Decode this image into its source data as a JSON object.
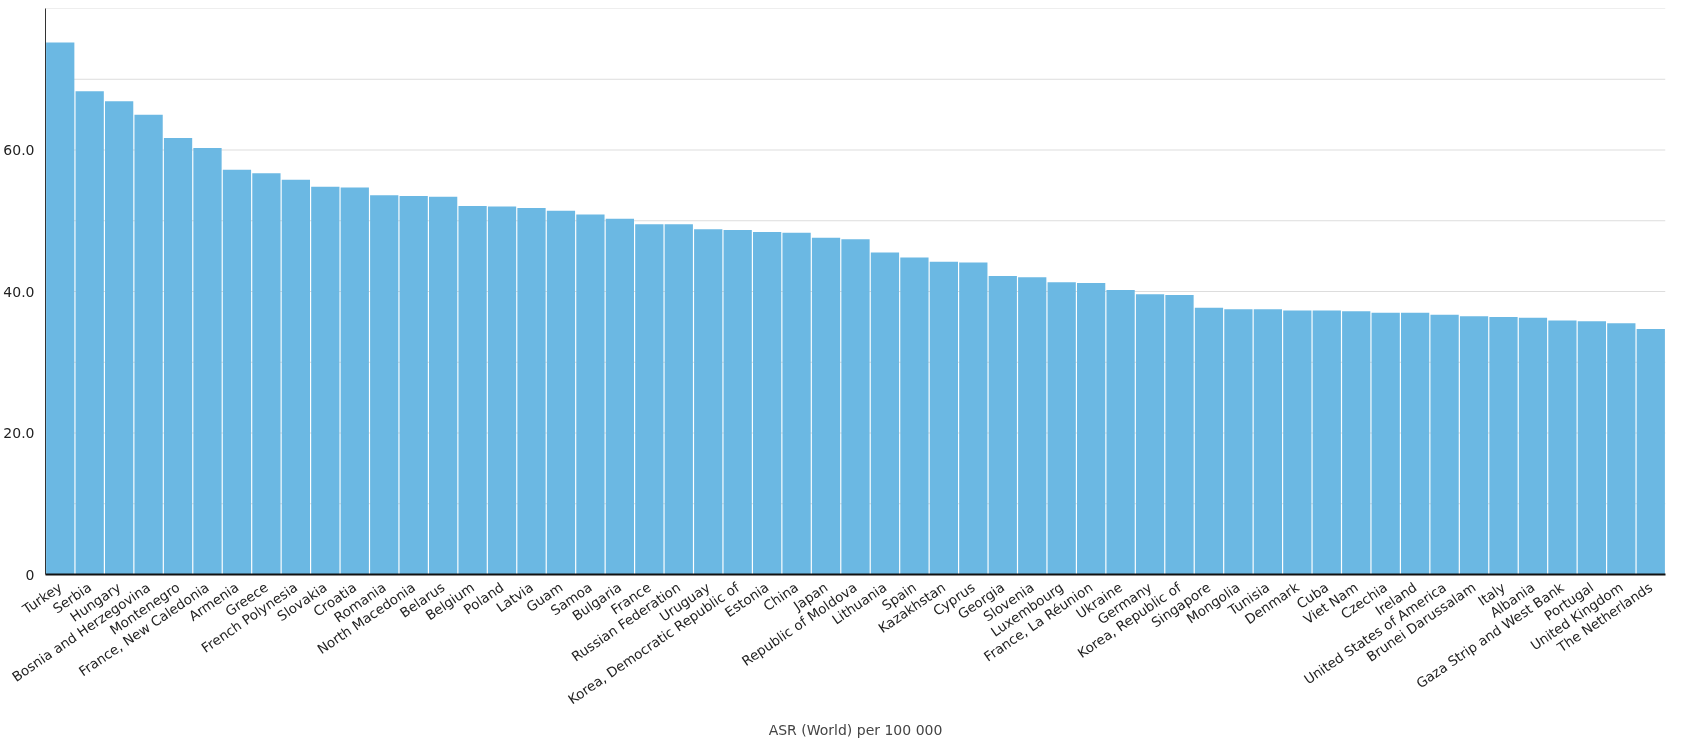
{
  "chart_data": {
    "type": "bar",
    "xlabel": "ASR (World) per 100 000",
    "color": "#6bb8e3",
    "grid": "y",
    "categories": [
      "Turkey",
      "Serbia",
      "Hungary",
      "Bosnia and Herzegovina",
      "Montenegro",
      "France, New Caledonia",
      "Armenia",
      "Greece",
      "French Polynesia",
      "Slovakia",
      "Croatia",
      "Romania",
      "North Macedonia",
      "Belarus",
      "Belgium",
      "Poland",
      "Latvia",
      "Guam",
      "Samoa",
      "Bulgaria",
      "France",
      "Russian Federation",
      "Uruguay",
      "Korea, Democratic Republic of",
      "Estonia",
      "China",
      "Japan",
      "Republic of Moldova",
      "Lithuania",
      "Spain",
      "Kazakhstan",
      "Cyprus",
      "Georgia",
      "Slovenia",
      "Luxembourg",
      "France, La Réunion",
      "Ukraine",
      "Germany",
      "Korea, Republic of",
      "Singapore",
      "Mongolia",
      "Tunisia",
      "Denmark",
      "Cuba",
      "Viet Nam",
      "Czechia",
      "Ireland",
      "United States of America",
      "Brunei Darussalam",
      "Italy",
      "Albania",
      "Gaza Strip and West Bank",
      "Portugal",
      "United Kingdom",
      "The Netherlands"
    ],
    "values": [
      75.2,
      68.3,
      66.9,
      65.0,
      61.7,
      60.3,
      57.2,
      56.7,
      55.8,
      54.8,
      54.7,
      53.6,
      53.5,
      53.4,
      52.1,
      52.0,
      51.8,
      51.4,
      50.9,
      50.3,
      49.5,
      49.5,
      48.8,
      48.7,
      48.4,
      48.3,
      47.6,
      47.4,
      45.5,
      44.8,
      44.2,
      44.1,
      42.2,
      42.0,
      41.3,
      41.2,
      40.2,
      39.6,
      39.5,
      37.7,
      37.5,
      37.5,
      37.3,
      37.3,
      37.2,
      37.0,
      37.0,
      36.7,
      36.5,
      36.4,
      36.3,
      35.9,
      35.8,
      35.5,
      34.7
    ],
    "ylim": [
      0,
      80
    ],
    "yticks": [
      0,
      {
        "value": 10,
        "label": null
      },
      {
        "value": 20,
        "label": "20.0"
      },
      {
        "value": 30,
        "label": null
      },
      {
        "value": 40,
        "label": "40.0"
      },
      {
        "value": 50,
        "label": null
      },
      {
        "value": 60,
        "label": "60.0"
      },
      {
        "value": 70,
        "label": null
      },
      {
        "value": 80,
        "label": null
      }
    ]
  }
}
